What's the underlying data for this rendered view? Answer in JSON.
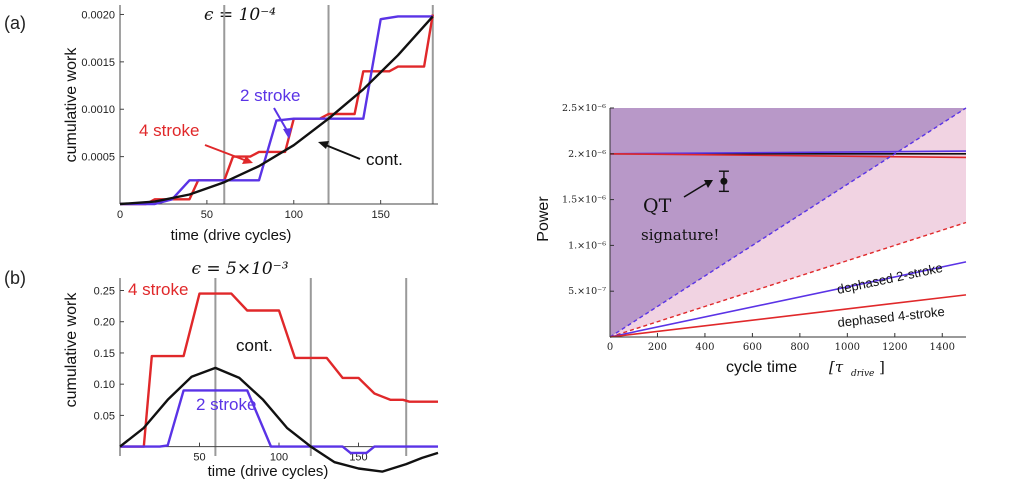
{
  "colors": {
    "four_stroke": "#e0282a",
    "two_stroke": "#5a33e6",
    "cont": "#111111",
    "grid": "#9a9a9a",
    "region_dark": "#b898c8",
    "region_light": "#f1d3e2"
  },
  "chart_data": [
    {
      "id": "a",
      "type": "line",
      "panel_label": "(a)",
      "title": "ϵ = 10⁻⁴",
      "xlabel": "time (drive cycles)",
      "ylabel": "cumulative work",
      "xlim": [
        0,
        183
      ],
      "ylim": [
        0,
        0.0021
      ],
      "xticks": [
        0,
        50,
        100,
        150
      ],
      "yticks": [
        {
          "v": 0.0005,
          "label": "0.0005"
        },
        {
          "v": 0.001,
          "label": "0.0010"
        },
        {
          "v": 0.0015,
          "label": "0.0015"
        },
        {
          "v": 0.002,
          "label": "0.0020"
        }
      ],
      "vlines": [
        60,
        120,
        180
      ],
      "series": [
        {
          "name": "4 stroke",
          "color_key": "four_stroke",
          "x": [
            0,
            15,
            20,
            40,
            45,
            60,
            65,
            75,
            80,
            95,
            100,
            115,
            120,
            135,
            140,
            155,
            160,
            175,
            180
          ],
          "y": [
            0,
            0,
            5e-05,
            5e-05,
            0.00025,
            0.00025,
            0.0005,
            0.0005,
            0.00055,
            0.00055,
            0.0009,
            0.0009,
            0.00095,
            0.00095,
            0.0014,
            0.0014,
            0.00145,
            0.00145,
            0.002
          ]
        },
        {
          "name": "2 stroke",
          "color_key": "two_stroke",
          "x": [
            0,
            20,
            30,
            40,
            60,
            80,
            90,
            100,
            120,
            140,
            150,
            160,
            180
          ],
          "y": [
            0,
            0,
            5e-05,
            0.00025,
            0.00025,
            0.00025,
            0.00088,
            0.0009,
            0.0009,
            0.0009,
            0.00195,
            0.00198,
            0.00198
          ]
        },
        {
          "name": "cont.",
          "color_key": "cont",
          "x": [
            0,
            20,
            40,
            60,
            80,
            100,
            120,
            140,
            160,
            180
          ],
          "y": [
            0,
            2.5e-05,
            0.0001,
            0.00023,
            0.0004,
            0.00062,
            0.0009,
            0.00121,
            0.00157,
            0.00198
          ]
        }
      ],
      "annotations": [
        {
          "text": "2 stroke",
          "color_key": "two_stroke"
        },
        {
          "text": "4 stroke",
          "color_key": "four_stroke"
        },
        {
          "text": "cont.",
          "color_key": "cont"
        }
      ]
    },
    {
      "id": "b",
      "type": "line",
      "panel_label": "(b)",
      "title": "ϵ = 5×10⁻³",
      "xlabel": "time (drive cycles)",
      "ylabel": "cumulative work",
      "xlim": [
        0,
        200
      ],
      "ylim": [
        -0.015,
        0.27
      ],
      "xticks": [
        50,
        100,
        150
      ],
      "yticks": [
        {
          "v": 0.05,
          "label": "0.05"
        },
        {
          "v": 0.1,
          "label": "0.10"
        },
        {
          "v": 0.15,
          "label": "0.15"
        },
        {
          "v": 0.2,
          "label": "0.20"
        },
        {
          "v": 0.25,
          "label": "0.25"
        }
      ],
      "vlines": [
        60,
        120,
        180
      ],
      "series": [
        {
          "name": "4 stroke",
          "color_key": "four_stroke",
          "x": [
            0,
            15,
            20,
            40,
            50,
            60,
            70,
            80,
            100,
            110,
            120,
            130,
            140,
            150,
            160,
            170,
            178,
            182,
            190,
            200
          ],
          "y": [
            0,
            0,
            0.145,
            0.145,
            0.245,
            0.245,
            0.245,
            0.218,
            0.218,
            0.142,
            0.142,
            0.142,
            0.11,
            0.11,
            0.085,
            0.075,
            0.075,
            0.072,
            0.072,
            0.072
          ]
        },
        {
          "name": "2 stroke",
          "color_key": "two_stroke",
          "x": [
            0,
            25,
            30,
            40,
            60,
            80,
            95,
            100,
            120,
            140,
            145,
            150,
            155,
            160,
            200
          ],
          "y": [
            0,
            0,
            0.002,
            0.09,
            0.09,
            0.09,
            0.0,
            0.0,
            0.0,
            0.0,
            -0.01,
            -0.01,
            -0.01,
            0.0,
            0.0
          ]
        },
        {
          "name": "cont.",
          "color_key": "cont",
          "x": [
            0,
            15,
            30,
            45,
            60,
            75,
            90,
            105,
            120,
            135,
            150,
            165,
            180,
            190,
            200
          ],
          "y": [
            0,
            0.03,
            0.075,
            0.112,
            0.126,
            0.11,
            0.075,
            0.03,
            0.0,
            -0.025,
            -0.035,
            -0.04,
            -0.028,
            -0.018,
            -0.01
          ]
        }
      ],
      "annotations": [
        {
          "text": "4 stroke",
          "color_key": "four_stroke"
        },
        {
          "text": "cont.",
          "color_key": "cont"
        },
        {
          "text": "2 stroke",
          "color_key": "two_stroke"
        }
      ]
    },
    {
      "id": "c",
      "type": "line",
      "title": "",
      "xlabel": "cycle time",
      "xlabel_unit": "[τ",
      "xlabel_unit_sub": "drive",
      "xlabel_unit_close": "]",
      "ylabel": "Power",
      "xlim": [
        0,
        1500
      ],
      "ylim": [
        0,
        2.5e-06
      ],
      "xticks": [
        0,
        200,
        400,
        600,
        800,
        1000,
        1200,
        1400
      ],
      "yticks": [
        {
          "v": 5e-07,
          "label": "5.×10⁻⁷"
        },
        {
          "v": 1e-06,
          "label": "1.×10⁻⁶"
        },
        {
          "v": 1.5e-06,
          "label": "1.5×10⁻⁶"
        },
        {
          "v": 2e-06,
          "label": "2.×10⁻⁶"
        },
        {
          "v": 2.5e-06,
          "label": "2.5×10⁻⁶"
        }
      ],
      "series": [
        {
          "name": "continuous",
          "color_key": "cont",
          "x": [
            0,
            1500
          ],
          "y": [
            2e-06,
            2e-06
          ]
        },
        {
          "name": "2-stroke",
          "color_key": "two_stroke",
          "x": [
            0,
            1500
          ],
          "y": [
            2e-06,
            2.03e-06
          ]
        },
        {
          "name": "4-stroke",
          "color_key": "four_stroke",
          "x": [
            0,
            1500
          ],
          "y": [
            2e-06,
            1.96e-06
          ]
        },
        {
          "name": "2-stroke bound",
          "color_key": "two_stroke",
          "dashed": true,
          "x": [
            0,
            1500
          ],
          "y": [
            0,
            2.5e-06
          ]
        },
        {
          "name": "4-stroke bound",
          "color_key": "four_stroke",
          "dashed": true,
          "x": [
            0,
            1500
          ],
          "y": [
            0,
            1.25e-06
          ]
        },
        {
          "name": "dephased 2-stroke",
          "color_key": "two_stroke",
          "x": [
            0,
            1500
          ],
          "y": [
            0,
            8.2e-07
          ]
        },
        {
          "name": "dephased 4-stroke",
          "color_key": "four_stroke",
          "x": [
            0,
            1500
          ],
          "y": [
            0,
            4.6e-07
          ]
        }
      ],
      "point": {
        "x": 480,
        "y": 1.7e-06,
        "err": 1.1e-07
      },
      "annotations": [
        {
          "text": "QT"
        },
        {
          "text": "signature!"
        },
        {
          "text": "dephased 2-stroke"
        },
        {
          "text": "dephased 4-stroke"
        }
      ]
    }
  ]
}
